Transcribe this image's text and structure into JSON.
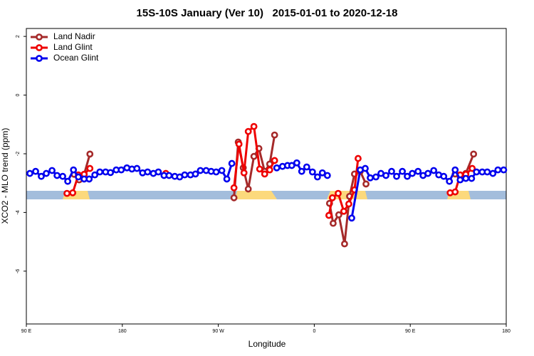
{
  "chart_data": {
    "type": "line",
    "title": "15S-10S January (Ver 10)   2015-01-01 to 2020-12-18",
    "x_label": "Longitude",
    "y_label": "XCO2 - MLO trend (ppm)",
    "xlim": [
      90,
      540
    ],
    "ylim": [
      -7.8,
      2.27
    ],
    "xticks": [
      {
        "value": 90,
        "label": "90 E"
      },
      {
        "value": 180,
        "label": "180"
      },
      {
        "value": 270,
        "label": "90 W"
      },
      {
        "value": 360,
        "label": "0"
      },
      {
        "value": 450,
        "label": "90 E"
      },
      {
        "value": 540,
        "label": "180"
      }
    ],
    "yticks": [
      2,
      0,
      -2,
      -4,
      -6
    ],
    "legend": "top-left",
    "series": [
      {
        "name": "Land Nadir",
        "color": "#a52a2a",
        "x": [
          134.8,
          139.5,
          144.2,
          149.6,
          null,
          284.7,
          288.7,
          293.4,
          298.1,
          303.4,
          308.1,
          313.5,
          318.2,
          322.8,
          null,
          374.3,
          377.7,
          383.0,
          388.4,
          393.1,
          397.7,
          403.1,
          408.5,
          null,
          492.1,
          496.8,
          502.1,
          509.4
        ],
        "values": [
          -2.7,
          -2.89,
          -2.7,
          -2.01,
          null,
          -3.5,
          -1.6,
          -2.48,
          -3.2,
          -2.09,
          -1.82,
          -2.6,
          -2.35,
          -1.36,
          null,
          -3.69,
          -4.37,
          -4.08,
          -5.07,
          -3.45,
          -2.69,
          -2.6,
          -3.03,
          null,
          -2.69,
          -2.77,
          -2.67,
          -2.01
        ]
      },
      {
        "name": "Land Glint",
        "color": "#ee0000",
        "x": [
          128.1,
          133.5,
          138.8,
          144.2,
          149.6,
          null,
          220.8,
          null,
          284.7,
          289.4,
          294.1,
          298.1,
          303.4,
          308.8,
          313.5,
          318.2,
          322.8,
          null,
          373.7,
          377.0,
          382.4,
          387.7,
          392.4,
          397.7,
          401.1,
          null,
          487.4,
          492.1,
          496.8,
          502.1,
          508.1
        ],
        "values": [
          -3.35,
          -3.33,
          -2.72,
          -2.7,
          -2.5,
          null,
          -2.67,
          null,
          -3.16,
          -1.67,
          -2.65,
          -1.24,
          -1.07,
          -2.52,
          -2.69,
          -2.55,
          -2.23,
          null,
          -4.1,
          -3.5,
          -3.35,
          -3.96,
          -3.71,
          -3.23,
          -2.16,
          null,
          -3.33,
          -3.3,
          -2.72,
          -2.7,
          -2.5
        ]
      },
      {
        "name": "Ocean Glint",
        "color": "#0000ee",
        "x": [
          93.3,
          98.7,
          104.0,
          108.7,
          114.1,
          118.8,
          124.1,
          128.8,
          134.2,
          138.8,
          144.2,
          148.9,
          154.2,
          158.9,
          164.3,
          168.9,
          174.3,
          179.0,
          184.3,
          189.0,
          193.7,
          199.0,
          203.7,
          209.1,
          213.8,
          219.1,
          223.8,
          229.2,
          233.8,
          238.5,
          243.9,
          248.6,
          253.2,
          258.6,
          263.3,
          268.0,
          273.3,
          278.0,
          282.7,
          null,
          324.8,
          330.2,
          334.9,
          338.9,
          343.6,
          348.2,
          352.9,
          358.3,
          363.0,
          367.6,
          372.3,
          null,
          395.1,
          403.1,
          407.8,
          412.5,
          417.8,
          422.5,
          427.2,
          432.5,
          437.2,
          442.6,
          447.2,
          451.9,
          457.3,
          462.0,
          466.6,
          472.0,
          476.7,
          481.4,
          486.7,
          492.1,
          496.8,
          502.1,
          507.5,
          512.1,
          517.5,
          522.2,
          527.5,
          532.2,
          537.6
        ],
        "values": [
          -2.67,
          -2.6,
          -2.77,
          -2.67,
          -2.57,
          -2.74,
          -2.77,
          -2.94,
          -2.55,
          -2.79,
          -2.86,
          -2.86,
          -2.72,
          -2.62,
          -2.62,
          -2.64,
          -2.55,
          -2.55,
          -2.48,
          -2.52,
          -2.5,
          -2.65,
          -2.62,
          -2.67,
          -2.62,
          -2.74,
          -2.74,
          -2.77,
          -2.79,
          -2.72,
          -2.72,
          -2.69,
          -2.57,
          -2.57,
          -2.6,
          -2.62,
          -2.57,
          -2.86,
          -2.33,
          null,
          -2.48,
          -2.43,
          -2.4,
          -2.4,
          -2.31,
          -2.6,
          -2.45,
          -2.62,
          -2.79,
          -2.65,
          -2.74,
          null,
          -4.19,
          -2.55,
          -2.5,
          -2.82,
          -2.79,
          -2.67,
          -2.74,
          -2.6,
          -2.77,
          -2.6,
          -2.77,
          -2.67,
          -2.6,
          -2.74,
          -2.67,
          -2.57,
          -2.72,
          -2.77,
          -2.94,
          -2.55,
          -2.89,
          -2.84,
          -2.84,
          -2.62,
          -2.62,
          -2.62,
          -2.67,
          -2.55,
          -2.55
        ]
      }
    ]
  }
}
